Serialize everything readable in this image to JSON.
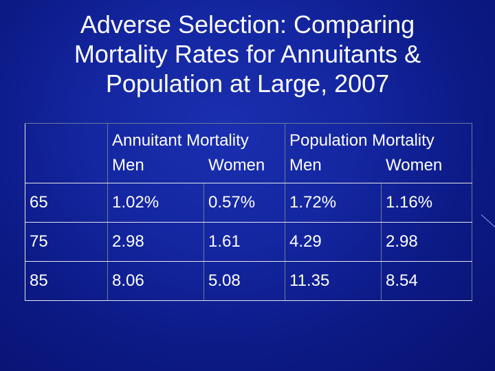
{
  "title": {
    "line1": "Adverse Selection: Comparing",
    "line2": "Mortality Rates for Annuitants &",
    "line3": "Population at Large, 2007"
  },
  "table": {
    "groups": [
      {
        "label": "Annuitant Mortality",
        "sub": [
          "Men",
          "Women"
        ]
      },
      {
        "label": "Population Mortality",
        "sub": [
          "Men",
          "Women"
        ]
      }
    ],
    "corner": "",
    "rows": [
      {
        "age": "65",
        "values": [
          "1.02%",
          "0.57%",
          "1.72%",
          "1.16%"
        ]
      },
      {
        "age": "75",
        "values": [
          "2.98",
          "1.61",
          "4.29",
          "2.98"
        ]
      },
      {
        "age": "85",
        "values": [
          "8.06",
          "5.08",
          "11.35",
          "8.54"
        ]
      }
    ]
  },
  "colors": {
    "background": "#1426a0",
    "text": "#ffffff",
    "border_light": "#e8e8e8",
    "border_dark": "#6f7a95"
  }
}
